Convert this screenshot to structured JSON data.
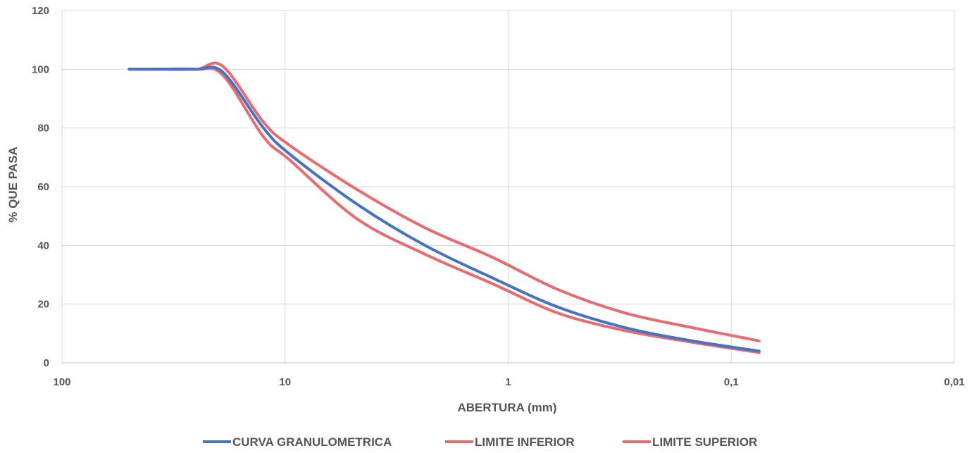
{
  "chart_data": {
    "type": "line",
    "title": "",
    "xlabel": "ABERTURA (mm)",
    "ylabel": "% QUE PASA",
    "x_scale": "log",
    "x_reversed": true,
    "xlim": [
      100,
      0.01
    ],
    "ylim": [
      0,
      120
    ],
    "x_ticks": [
      100,
      10,
      1,
      0.1,
      0.01
    ],
    "x_tick_labels": [
      "100",
      "10",
      "1",
      "0,1",
      "0,01"
    ],
    "y_ticks": [
      0,
      20,
      40,
      60,
      80,
      100,
      120
    ],
    "y_tick_labels": [
      "0",
      "20",
      "40",
      "60",
      "80",
      "100",
      "120"
    ],
    "grid": true,
    "legend_position": "bottom",
    "series": [
      {
        "name": "CURVA GRANULOMETRICA",
        "color": "#4472c4",
        "x": [
          50,
          37.5,
          25,
          19,
          12.5,
          9.5,
          4.75,
          2.36,
          1.18,
          0.6,
          0.3,
          0.15,
          0.075
        ],
        "y": [
          100,
          100,
          100,
          99,
          80,
          71,
          54,
          40,
          29,
          19,
          12,
          7.5,
          4
        ]
      },
      {
        "name": "LIMITE INFERIOR",
        "color": "#e96b70",
        "x": [
          50,
          37.5,
          25,
          19,
          12.5,
          9.5,
          4.75,
          2.36,
          1.18,
          0.6,
          0.3,
          0.15,
          0.075
        ],
        "y": [
          100,
          100,
          100,
          98,
          77,
          69,
          49,
          37,
          27,
          17,
          11,
          7,
          3.5
        ]
      },
      {
        "name": "LIMITE SUPERIOR",
        "color": "#e96b70",
        "x": [
          50,
          37.5,
          25,
          19,
          12.5,
          9.5,
          4.75,
          2.36,
          1.18,
          0.6,
          0.3,
          0.15,
          0.075
        ],
        "y": [
          100,
          100,
          100,
          101,
          82,
          74,
          59,
          46,
          36,
          25,
          17,
          12,
          7.5
        ]
      }
    ]
  }
}
